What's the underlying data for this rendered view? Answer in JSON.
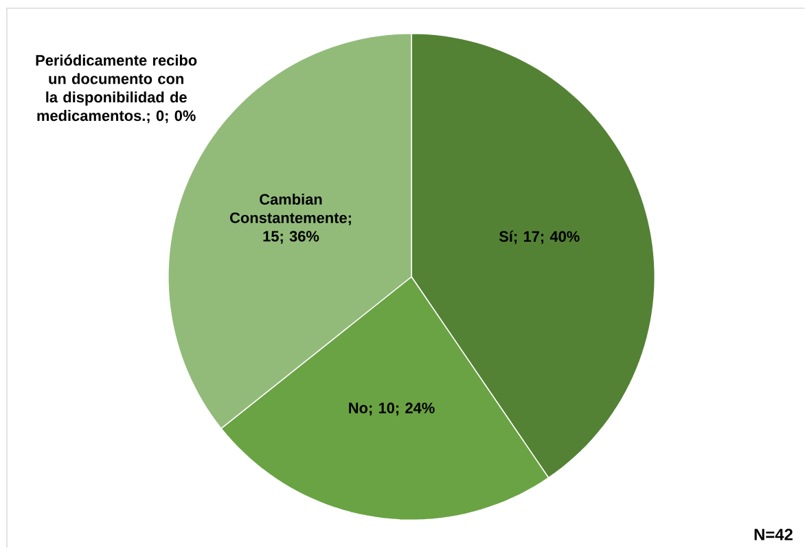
{
  "chart_data": {
    "type": "pie",
    "categories": [
      "Sí",
      "No",
      "Cambian Constantemente",
      "Periódicamente recibo un documento con la disponibilidad de medicamentos."
    ],
    "values": [
      17,
      10,
      15,
      0
    ],
    "value_labels": [
      "; 17; 40%",
      "; 10; 24%",
      "; 15; 36%",
      "; 0; 0%"
    ],
    "colors": [
      "#548235",
      "#6aa343",
      "#92bb7a",
      "#c5e0b4"
    ],
    "annotations": [
      "N=42"
    ]
  }
}
